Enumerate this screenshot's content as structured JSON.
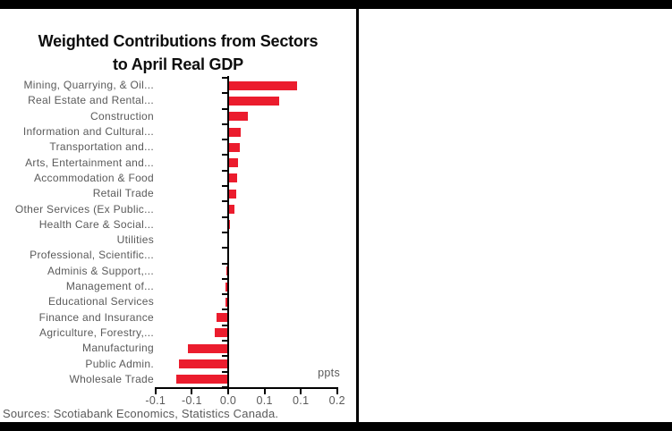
{
  "colors": {
    "bar_red": "#EB1C2D",
    "label_gray": "#5A5A5A",
    "frame_black": "#000000",
    "background": "#FFFFFF"
  },
  "chart_data": {
    "type": "bar",
    "orientation": "horizontal",
    "title": "Weighted Contributions from Sectors to April Real GDP",
    "title_lines": [
      "Weighted Contributions from Sectors",
      "to April Real GDP"
    ],
    "unit_label": "ppts",
    "xlabel": "ppts",
    "ylabel": "",
    "xlim": [
      -0.1,
      0.15
    ],
    "grid": false,
    "legend": false,
    "x_tick_values": [
      -0.1,
      -0.05,
      0.0,
      0.05,
      0.1,
      0.15
    ],
    "x_tick_labels": [
      "-0.1",
      "-0.1",
      "0.0",
      "0.1",
      "0.1",
      "0.2"
    ],
    "categories": [
      "Mining, Quarrying, & Oil...",
      "Real Estate and Rental...",
      "Construction",
      "Information and Cultural...",
      "Transportation and...",
      "Arts, Entertainment and...",
      "Accommodation & Food",
      "Retail Trade",
      "Other Services (Ex Public...",
      "Health Care & Social...",
      "Utilities",
      "Professional, Scientific...",
      "Adminis & Support,...",
      "Management of...",
      "Educational Services",
      "Finance and Insurance",
      "Agriculture, Forestry,...",
      "Manufacturing",
      "Public Admin.",
      "Wholesale Trade"
    ],
    "values": [
      0.095,
      0.07,
      0.027,
      0.017,
      0.016,
      0.014,
      0.012,
      0.011,
      0.009,
      0.002,
      0.0,
      0.0,
      -0.002,
      -0.004,
      -0.004,
      -0.016,
      -0.018,
      -0.055,
      -0.068,
      -0.071
    ],
    "source": "Sources: Scotiabank Economics, Statistics Canada."
  }
}
